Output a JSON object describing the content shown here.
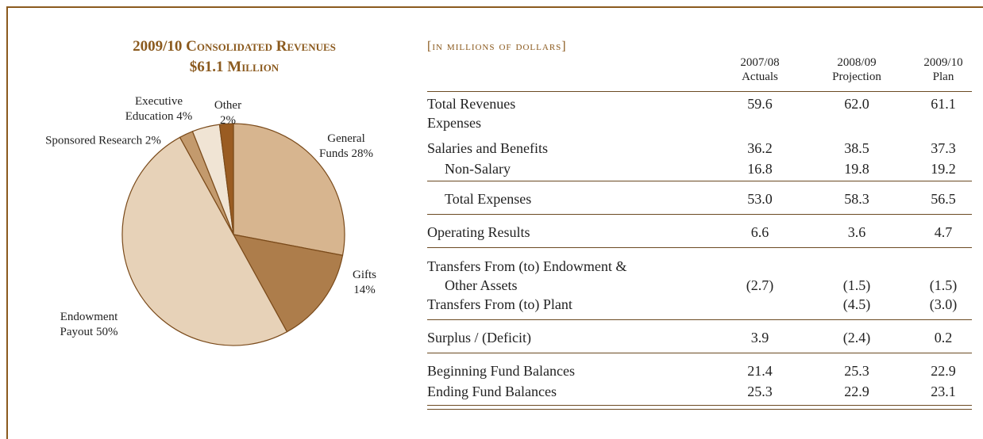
{
  "chart_data": {
    "type": "pie",
    "title": "2009/10 Consolidated Revenues",
    "subtitle": "$61.1 Million",
    "categories": [
      "General Funds",
      "Gifts",
      "Endowment Payout",
      "Sponsored Research",
      "Executive Education",
      "Other"
    ],
    "values": [
      28,
      14,
      50,
      2,
      4,
      2
    ],
    "value_labels": [
      "28%",
      "14%",
      "50%",
      "2%",
      "4%",
      "2%"
    ],
    "colors": [
      "#d7b58f",
      "#ad7d4b",
      "#e7d2b8",
      "#c39a6d",
      "#f0e4d4",
      "#9a5c22"
    ]
  },
  "table": {
    "caption": "[in millions of dollars]",
    "columns": [
      [
        "2007/08",
        "Actuals"
      ],
      [
        "2008/09",
        "Projection"
      ],
      [
        "2009/10",
        "Plan"
      ]
    ],
    "rows": [
      [
        "Total Revenues",
        "59.6",
        "62.0",
        "61.1"
      ],
      [
        "Expenses",
        null,
        null,
        null
      ],
      [
        "Salaries and Benefits",
        "36.2",
        "38.5",
        "37.3"
      ],
      [
        "Non-Salary",
        "16.8",
        "19.8",
        "19.2"
      ],
      [
        "Total Expenses",
        "53.0",
        "58.3",
        "56.5"
      ],
      [
        "Operating Results",
        "6.6",
        "3.6",
        "4.7"
      ],
      [
        "Transfers From (to) Endowment &",
        null,
        null,
        null
      ],
      [
        "Other Assets",
        "(2.7)",
        "(1.5)",
        "(1.5)"
      ],
      [
        "Transfers From (to) Plant",
        null,
        "(4.5)",
        "(3.0)"
      ],
      [
        "Surplus / (Deficit)",
        "3.9",
        "(2.4)",
        "0.2"
      ],
      [
        "Beginning Fund Balances",
        "21.4",
        "25.3",
        "22.9"
      ],
      [
        "Ending Fund Balances",
        "25.3",
        "22.9",
        "23.1"
      ]
    ]
  }
}
